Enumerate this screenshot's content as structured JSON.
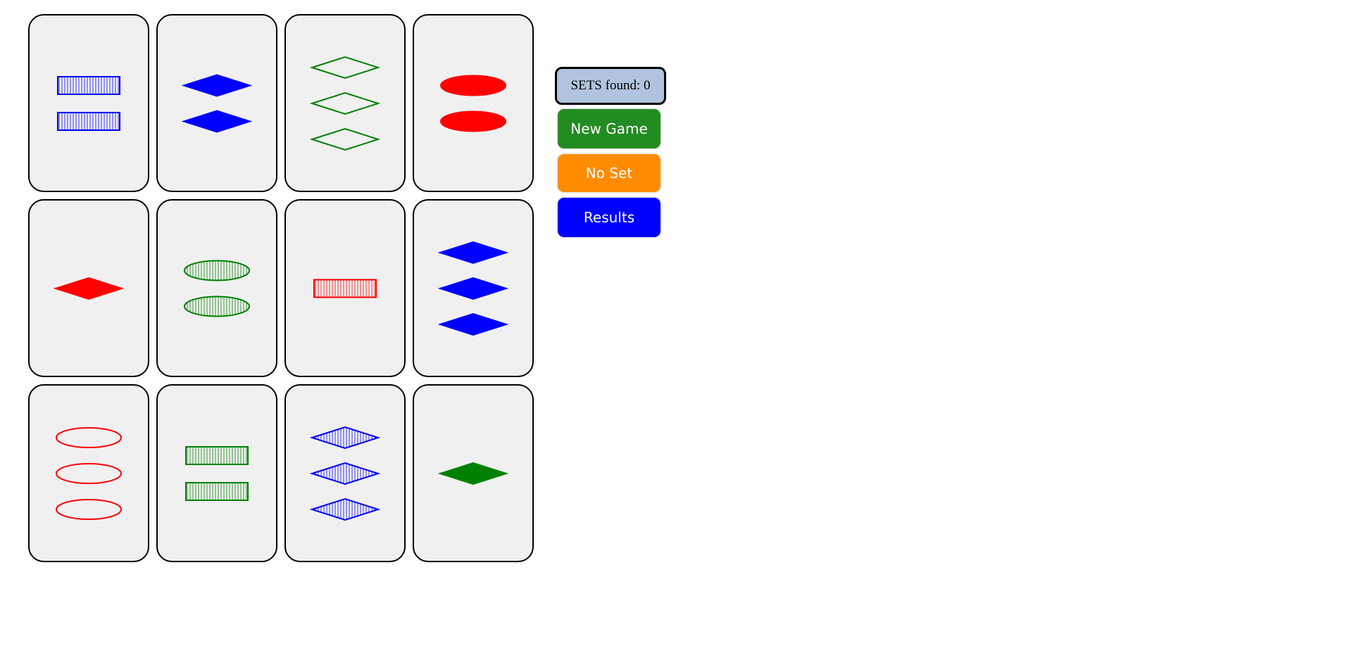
{
  "score": {
    "label": "SETS found: 0"
  },
  "buttons": {
    "new_game": "New Game",
    "no_set": "No Set",
    "results": "Results"
  },
  "colors": {
    "red": "#ff0000",
    "green": "#008000",
    "blue": "#0000ff",
    "card_background": "#f0f0f0",
    "score_background": "#b0c4de",
    "new_game_button": "#228b22",
    "no_set_button": "#ff8c00",
    "results_button": "#0000ff"
  },
  "cards": [
    {
      "count": 2,
      "shape": "rectangle",
      "color": "blue",
      "fill": "striped"
    },
    {
      "count": 2,
      "shape": "diamond",
      "color": "blue",
      "fill": "solid"
    },
    {
      "count": 3,
      "shape": "diamond",
      "color": "green",
      "fill": "open"
    },
    {
      "count": 2,
      "shape": "oval",
      "color": "red",
      "fill": "solid"
    },
    {
      "count": 1,
      "shape": "diamond",
      "color": "red",
      "fill": "solid"
    },
    {
      "count": 2,
      "shape": "oval",
      "color": "green",
      "fill": "striped"
    },
    {
      "count": 1,
      "shape": "rectangle",
      "color": "red",
      "fill": "striped"
    },
    {
      "count": 3,
      "shape": "diamond",
      "color": "blue",
      "fill": "solid"
    },
    {
      "count": 3,
      "shape": "oval",
      "color": "red",
      "fill": "open"
    },
    {
      "count": 2,
      "shape": "rectangle",
      "color": "green",
      "fill": "striped"
    },
    {
      "count": 3,
      "shape": "diamond",
      "color": "blue",
      "fill": "striped"
    },
    {
      "count": 1,
      "shape": "diamond",
      "color": "green",
      "fill": "solid"
    }
  ]
}
